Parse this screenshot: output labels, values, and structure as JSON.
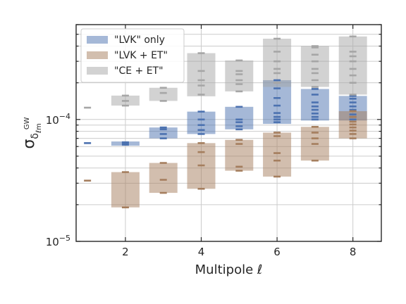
{
  "chart_data": {
    "type": "bar",
    "xlabel": "Multipole ℓ",
    "ylabel_main": "σ",
    "ylabel_sub": "δ",
    "ylabel_subsub": "ℓm",
    "ylabel_sup": "GW",
    "xlim": [
      0.7,
      8.75
    ],
    "ylim": [
      1e-05,
      0.0006
    ],
    "yscale": "log",
    "x_ticks": [
      2,
      4,
      6,
      8
    ],
    "x_tick_labels": [
      "2",
      "4",
      "6",
      "8"
    ],
    "y_major_ticks": [
      {
        "value": 1e-05,
        "base": "10",
        "exp": "−5"
      },
      {
        "value": 0.0001,
        "base": "10",
        "exp": "−4"
      }
    ],
    "grid": true,
    "legend_position": "top-left",
    "series": [
      {
        "name": "\"LVK\" only",
        "color": "#4c72b0",
        "boxes": [
          {
            "l": 1,
            "min": 6.4e-05,
            "max": 6.4e-05,
            "points": [
              6.4e-05
            ]
          },
          {
            "l": 2,
            "min": 6.1e-05,
            "max": 6.6e-05,
            "points": [
              6.2e-05,
              6.4e-05,
              6.5e-05
            ]
          },
          {
            "l": 3,
            "min": 7e-05,
            "max": 8.6e-05,
            "points": [
              7e-05,
              7.6e-05,
              8.3e-05,
              8.6e-05
            ]
          },
          {
            "l": 4,
            "min": 7.6e-05,
            "max": 0.000116,
            "points": [
              7.6e-05,
              8.2e-05,
              9e-05,
              0.0001,
              0.000116
            ]
          },
          {
            "l": 5,
            "min": 8.3e-05,
            "max": 0.000127,
            "points": [
              8.3e-05,
              8.8e-05,
              9.5e-05,
              0.0001,
              0.000127
            ]
          },
          {
            "l": 6,
            "min": 9.2e-05,
            "max": 0.00021,
            "points": [
              9.5e-05,
              0.0001,
              0.000105,
              0.000113,
              0.00013,
              0.00015,
              0.00018,
              0.00021
            ]
          },
          {
            "l": 7,
            "min": 9.8e-05,
            "max": 0.000178,
            "points": [
              0.0001,
              0.000105,
              0.000112,
              0.00012,
              0.000128,
              0.000138,
              0.00016,
              0.000178
            ]
          },
          {
            "l": 8,
            "min": 9.8e-05,
            "max": 0.000156,
            "points": [
              0.0001,
              0.000105,
              0.00011,
              0.00012,
              0.000128,
              0.000138,
              0.000148,
              0.000156
            ]
          }
        ]
      },
      {
        "name": "\"LVK + ET\"",
        "color": "#a57e5e",
        "boxes": [
          {
            "l": 1,
            "min": 3.15e-05,
            "max": 3.15e-05,
            "points": [
              3.15e-05
            ]
          },
          {
            "l": 2,
            "min": 1.9e-05,
            "max": 3.7e-05,
            "points": [
              1.9e-05,
              3.7e-05
            ]
          },
          {
            "l": 3,
            "min": 2.5e-05,
            "max": 4.4e-05,
            "points": [
              2.5e-05,
              3.2e-05,
              4.4e-05
            ]
          },
          {
            "l": 4,
            "min": 2.7e-05,
            "max": 6.4e-05,
            "points": [
              2.7e-05,
              4.2e-05,
              5.4e-05,
              6.4e-05
            ]
          },
          {
            "l": 5,
            "min": 3.8e-05,
            "max": 6.8e-05,
            "points": [
              3.8e-05,
              4.1e-05,
              6.3e-05,
              6.8e-05
            ]
          },
          {
            "l": 6,
            "min": 3.4e-05,
            "max": 7.8e-05,
            "points": [
              3.4e-05,
              4.6e-05,
              5.3e-05,
              7.3e-05,
              7.8e-05
            ]
          },
          {
            "l": 7,
            "min": 4.6e-05,
            "max": 8.7e-05,
            "points": [
              4.6e-05,
              6.3e-05,
              7e-05,
              7.8e-05,
              8.7e-05
            ]
          },
          {
            "l": 8,
            "min": 7e-05,
            "max": 0.000117,
            "points": [
              7e-05,
              7.6e-05,
              8.1e-05,
              8.6e-05,
              9.1e-05,
              9.6e-05,
              0.000105,
              0.000117
            ]
          }
        ]
      },
      {
        "name": "\"CE + ET\"",
        "color": "#a6a6a6",
        "boxes": [
          {
            "l": 1,
            "min": 0.000125,
            "max": 0.000125,
            "points": [
              0.000125
            ]
          },
          {
            "l": 2,
            "min": 0.00013,
            "max": 0.000157,
            "points": [
              0.00013,
              0.000142,
              0.000157
            ]
          },
          {
            "l": 3,
            "min": 0.000142,
            "max": 0.000182,
            "points": [
              0.000142,
              0.000165,
              0.000182
            ]
          },
          {
            "l": 4,
            "min": 0.000155,
            "max": 0.00035,
            "points": [
              0.00016,
              0.00019,
              0.00021,
              0.00025,
              0.00035
            ]
          },
          {
            "l": 5,
            "min": 0.00017,
            "max": 0.000305,
            "points": [
              0.00017,
              0.000195,
              0.00021,
              0.000235,
              0.00025,
              0.000305
            ]
          },
          {
            "l": 6,
            "min": 0.000185,
            "max": 0.00046,
            "points": [
              0.0002,
              0.00024,
              0.00026,
              0.0003,
              0.00036,
              0.00046
            ]
          },
          {
            "l": 7,
            "min": 0.000185,
            "max": 0.0004,
            "points": [
              0.000185,
              0.00021,
              0.00024,
              0.00026,
              0.0003,
              0.00034,
              0.00039,
              0.0004
            ]
          },
          {
            "l": 8,
            "min": 0.00016,
            "max": 0.00048,
            "points": [
              0.00016,
              0.0002,
              0.00023,
              0.00026,
              0.0003,
              0.00033,
              0.00036,
              0.00048
            ]
          }
        ]
      }
    ]
  }
}
